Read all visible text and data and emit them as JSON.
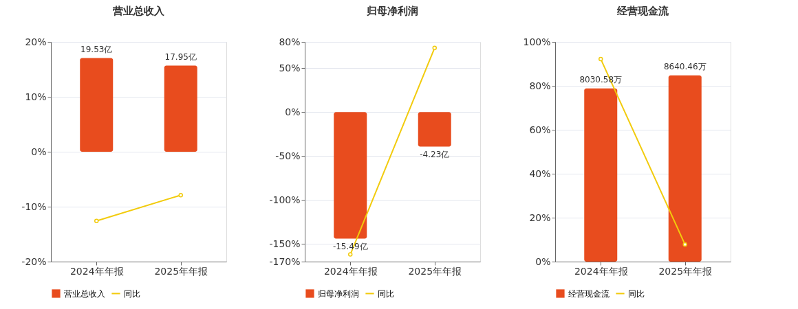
{
  "chart_data": [
    {
      "type": "bar",
      "title": "营业总收入",
      "categories": [
        "2024年年报",
        "2025年年报"
      ],
      "ylim": [
        -20,
        20
      ],
      "yticks": [
        {
          "value": -20,
          "label": "-20%"
        },
        {
          "value": -10,
          "label": "-10%"
        },
        {
          "value": 0,
          "label": "0%"
        },
        {
          "value": 10,
          "label": "10%"
        },
        {
          "value": 20,
          "label": "20%"
        }
      ],
      "y2lim": [
        -22.9,
        22.9
      ],
      "grid": "y",
      "legend": "bottom",
      "marker": "circle",
      "series": [
        {
          "name": "营业总收入",
          "type": "bar",
          "axis": "y2",
          "color": "#e84c1e",
          "values": [
            19.53,
            17.95
          ],
          "value_labels": [
            "19.53亿",
            "17.95亿"
          ]
        },
        {
          "name": "同比",
          "type": "line",
          "color": "#f2cb0c",
          "values": [
            -12.6,
            -7.9
          ]
        }
      ]
    },
    {
      "type": "bar",
      "title": "归母净利润",
      "categories": [
        "2024年年报",
        "2025年年报"
      ],
      "ylim": [
        -170,
        80
      ],
      "yticks": [
        {
          "value": -170,
          "label": "-170%"
        },
        {
          "value": -150,
          "label": "-150%"
        },
        {
          "value": -100,
          "label": "-100%"
        },
        {
          "value": -50,
          "label": "-50%"
        },
        {
          "value": 0,
          "label": "0%"
        },
        {
          "value": 50,
          "label": "50%"
        },
        {
          "value": 80,
          "label": "80%"
        }
      ],
      "y2lim": [
        -18.3,
        8.6
      ],
      "grid": "y",
      "legend": "bottom",
      "marker": "circle",
      "series": [
        {
          "name": "归母净利润",
          "type": "bar",
          "axis": "y2",
          "color": "#e84c1e",
          "values": [
            -15.49,
            -4.23
          ],
          "value_labels": [
            "-15.49亿",
            "-4.23亿"
          ]
        },
        {
          "name": "同比",
          "type": "line",
          "color": "#f2cb0c",
          "values": [
            -161.8,
            73.1
          ]
        }
      ]
    },
    {
      "type": "bar",
      "title": "经营现金流",
      "categories": [
        "2024年年报",
        "2025年年报"
      ],
      "ylim": [
        0,
        100
      ],
      "yticks": [
        {
          "value": 0,
          "label": "0%"
        },
        {
          "value": 20,
          "label": "20%"
        },
        {
          "value": 40,
          "label": "40%"
        },
        {
          "value": 60,
          "label": "60%"
        },
        {
          "value": 80,
          "label": "80%"
        },
        {
          "value": 100,
          "label": "100%"
        }
      ],
      "y2lim": [
        0,
        10190
      ],
      "grid": "y",
      "legend": "bottom",
      "marker": "circle",
      "series": [
        {
          "name": "经营现金流",
          "type": "bar",
          "axis": "y2",
          "color": "#e84c1e",
          "values": [
            8030.58,
            8640.46
          ],
          "value_labels": [
            "8030.58万",
            "8640.46万"
          ]
        },
        {
          "name": "同比",
          "type": "line",
          "color": "#f2cb0c",
          "values": [
            92.2,
            7.8
          ]
        }
      ]
    }
  ]
}
